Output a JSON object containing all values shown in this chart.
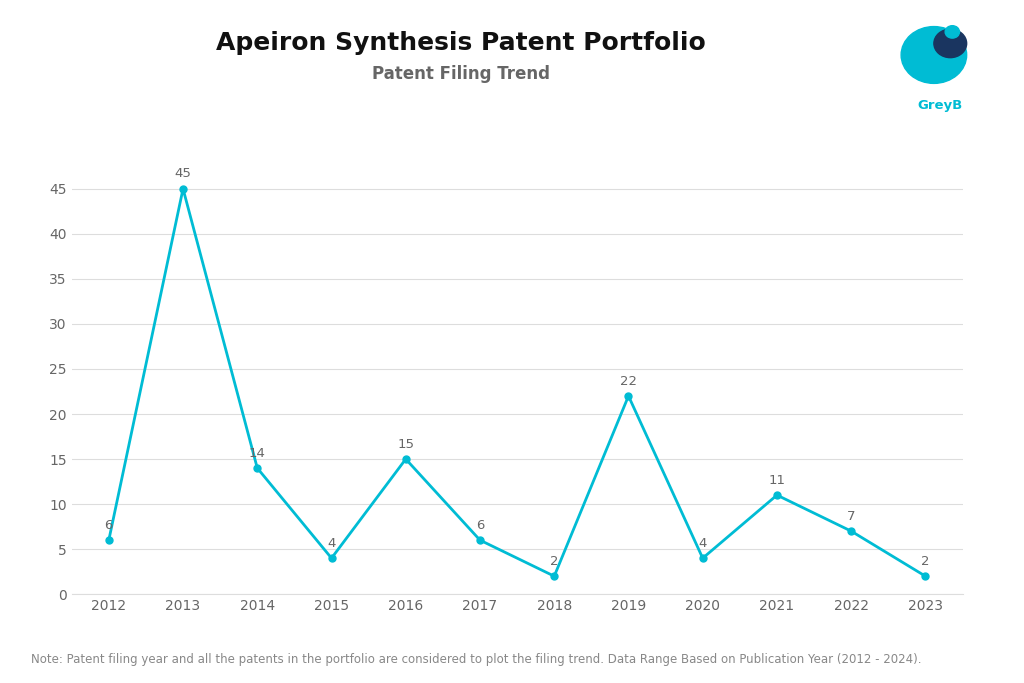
{
  "title": "Apeiron Synthesis Patent Portfolio",
  "subtitle": "Patent Filing Trend",
  "years": [
    2012,
    2013,
    2014,
    2015,
    2016,
    2017,
    2018,
    2019,
    2020,
    2021,
    2022,
    2023
  ],
  "values": [
    6,
    45,
    14,
    4,
    15,
    6,
    2,
    22,
    4,
    11,
    7,
    2
  ],
  "line_color": "#00BCD4",
  "marker_color": "#00BCD4",
  "background_color": "#FFFFFF",
  "title_fontsize": 18,
  "subtitle_fontsize": 12,
  "annotation_fontsize": 9.5,
  "tick_fontsize": 10,
  "note_text": "Note: Patent filing year and all the patents in the portfolio are considered to plot the filing trend. Data Range Based on Publication Year (2012 - 2024).",
  "note_fontsize": 8.5,
  "ylim": [
    0,
    47
  ],
  "yticks": [
    0,
    5,
    10,
    15,
    20,
    25,
    30,
    35,
    40,
    45
  ],
  "title_color": "#111111",
  "subtitle_color": "#666666",
  "tick_color": "#666666",
  "grid_color": "#dddddd",
  "note_color": "#888888",
  "logo_teal": "#00BCD4",
  "logo_dark": "#1a3560",
  "logo_text_color": "#00BCD4"
}
